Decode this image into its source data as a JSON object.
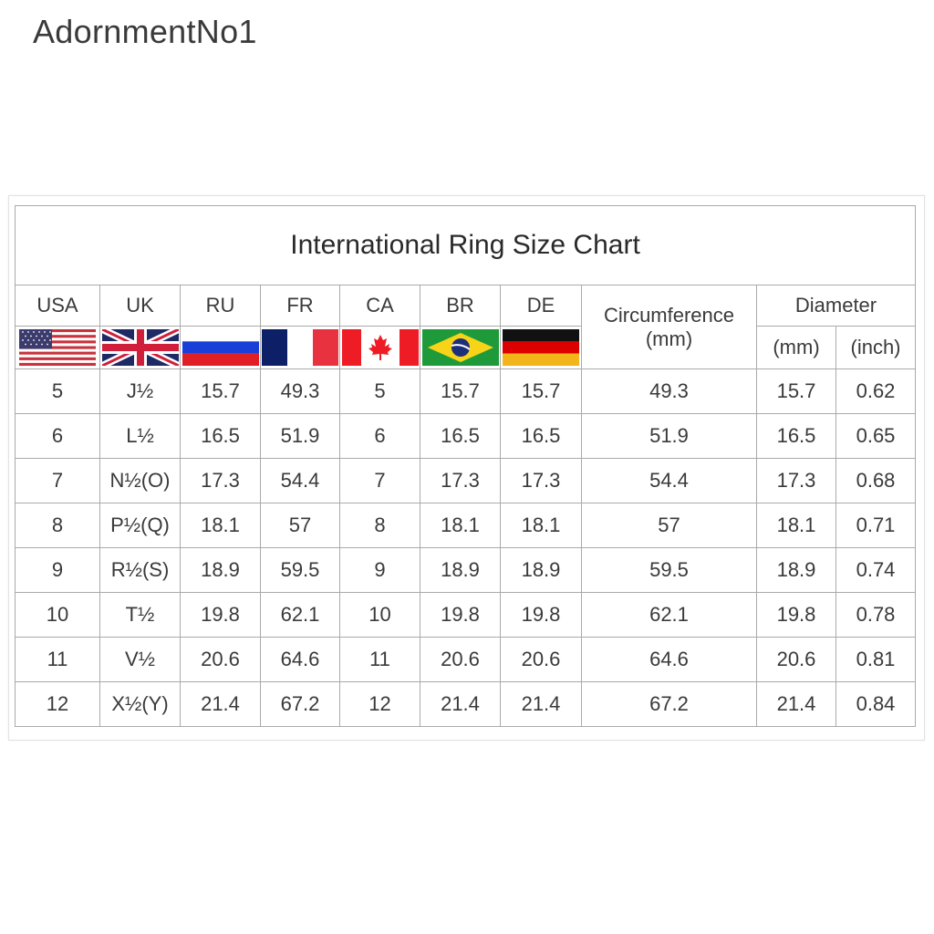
{
  "brand": "AdornmentNo1",
  "chart": {
    "title": "International Ring Size Chart",
    "country_headers": [
      "USA",
      "UK",
      "RU",
      "FR",
      "CA",
      "BR",
      "DE"
    ],
    "flags": [
      "us-flag",
      "uk-flag",
      "russia-flag",
      "france-flag",
      "canada-flag",
      "brazil-flag",
      "germany-flag"
    ],
    "circumference_header": "Circumference",
    "circumference_unit": "(mm)",
    "diameter_header": "Diameter",
    "diameter_units": [
      "(mm)",
      "(inch)"
    ],
    "rows": [
      [
        "5",
        "J½",
        "15.7",
        "49.3",
        "5",
        "15.7",
        "15.7",
        "49.3",
        "15.7",
        "0.62"
      ],
      [
        "6",
        "L½",
        "16.5",
        "51.9",
        "6",
        "16.5",
        "16.5",
        "51.9",
        "16.5",
        "0.65"
      ],
      [
        "7",
        "N½(O)",
        "17.3",
        "54.4",
        "7",
        "17.3",
        "17.3",
        "54.4",
        "17.3",
        "0.68"
      ],
      [
        "8",
        "P½(Q)",
        "18.1",
        "57",
        "8",
        "18.1",
        "18.1",
        "57",
        "18.1",
        "0.71"
      ],
      [
        "9",
        "R½(S)",
        "18.9",
        "59.5",
        "9",
        "18.9",
        "18.9",
        "59.5",
        "18.9",
        "0.74"
      ],
      [
        "10",
        "T½",
        "19.8",
        "62.1",
        "10",
        "19.8",
        "19.8",
        "62.1",
        "19.8",
        "0.78"
      ],
      [
        "11",
        "V½",
        "20.6",
        "64.6",
        "11",
        "20.6",
        "20.6",
        "64.6",
        "20.6",
        "0.81"
      ],
      [
        "12",
        "X½(Y)",
        "21.4",
        "67.2",
        "12",
        "21.4",
        "21.4",
        "67.2",
        "21.4",
        "0.84"
      ]
    ]
  }
}
